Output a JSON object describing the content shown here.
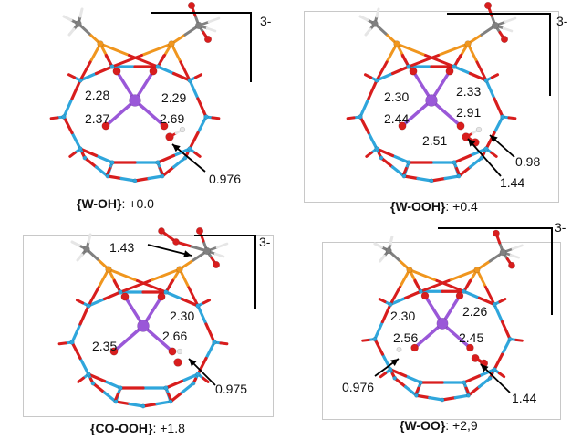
{
  "panels": [
    {
      "name": "{W-OH}",
      "energy": ": +0.0",
      "charge": "3-",
      "labels": [
        "2.28",
        "2.29",
        "2.37",
        "2.69",
        "0.976"
      ]
    },
    {
      "name": "{W-OOH}",
      "energy": ": +0.4",
      "charge": "3-",
      "labels": [
        "2.30",
        "2.33",
        "2.44",
        "2.91",
        "2.51",
        "0.98",
        "1.44"
      ]
    },
    {
      "name": "{CO-OOH}",
      "energy": ": +1.8",
      "charge": "3-",
      "labels": [
        "1.43",
        "2.30",
        "2.35",
        "2.66",
        "0.975"
      ]
    },
    {
      "name": "{W-OO}",
      "energy": ": +2,9",
      "charge": "3-",
      "labels": [
        "2.30",
        "2.26",
        "2.56",
        "2.45",
        "0.976",
        "1.44"
      ]
    }
  ],
  "colors": {
    "oxygen": "#d81d1d",
    "tungsten": "#2fa6dc",
    "phosphorus": "#f0961e",
    "metal_center": "#9a58d8",
    "carbon": "#808080",
    "hydrogen": "#e6e6e6"
  }
}
